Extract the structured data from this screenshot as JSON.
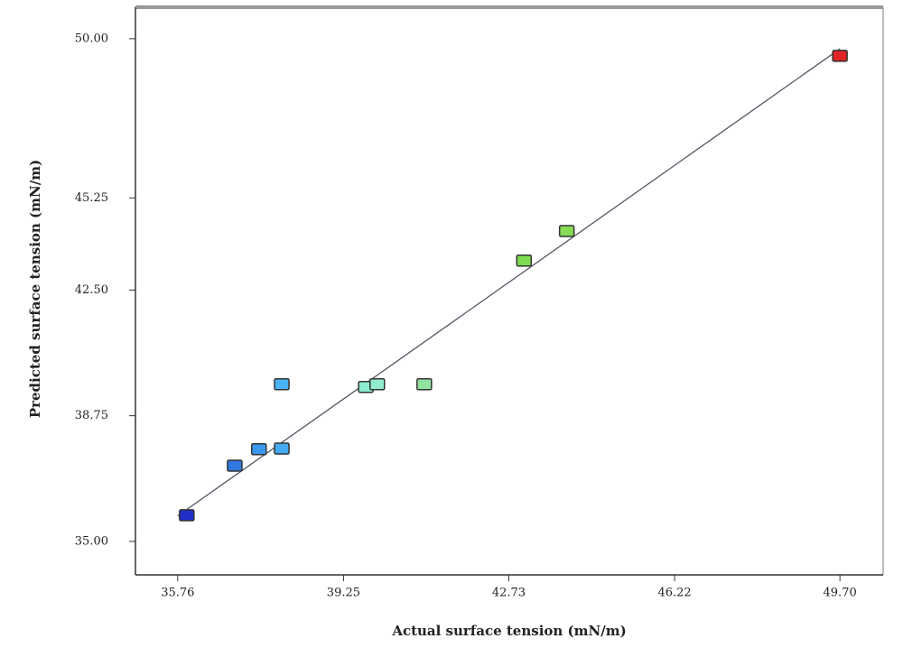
{
  "chart_data": {
    "type": "scatter",
    "x_label": "Actual surface tension (mN/m)",
    "y_label": "Predicted surface tension (mN/m)",
    "x": [
      35.95,
      36.96,
      37.47,
      37.95,
      37.95,
      39.72,
      39.96,
      40.95,
      43.05,
      43.95,
      49.7
    ],
    "values": [
      35.78,
      37.26,
      37.75,
      37.77,
      39.69,
      39.61,
      39.69,
      39.69,
      43.38,
      44.26,
      49.49
    ],
    "colors": [
      "#1f2fc8",
      "#2f78e0",
      "#3a98ee",
      "#44aaf2",
      "#48b4f4",
      "#8cecd0",
      "#90eccc",
      "#90e4a0",
      "#7edc50",
      "#86dc54",
      "#e02424"
    ],
    "fit_line": {
      "x": [
        35.76,
        49.7
      ],
      "y": [
        35.76,
        49.7
      ]
    },
    "xlim": [
      34.87,
      50.61
    ],
    "ylim": [
      34.0,
      50.94
    ],
    "xticks": [
      {
        "value": 35.76,
        "label": "35.76"
      },
      {
        "value": 39.25,
        "label": "39.25"
      },
      {
        "value": 42.73,
        "label": "42.73"
      },
      {
        "value": 46.22,
        "label": "46.22"
      },
      {
        "value": 49.7,
        "label": "49.70"
      }
    ],
    "yticks": [
      {
        "value": 35.0,
        "label": "35.00"
      },
      {
        "value": 38.75,
        "label": "38.75"
      },
      {
        "value": 42.5,
        "label": "42.50"
      },
      {
        "value": 45.25,
        "label": "45.25"
      },
      {
        "value": 50.0,
        "label": "50.00"
      }
    ]
  }
}
